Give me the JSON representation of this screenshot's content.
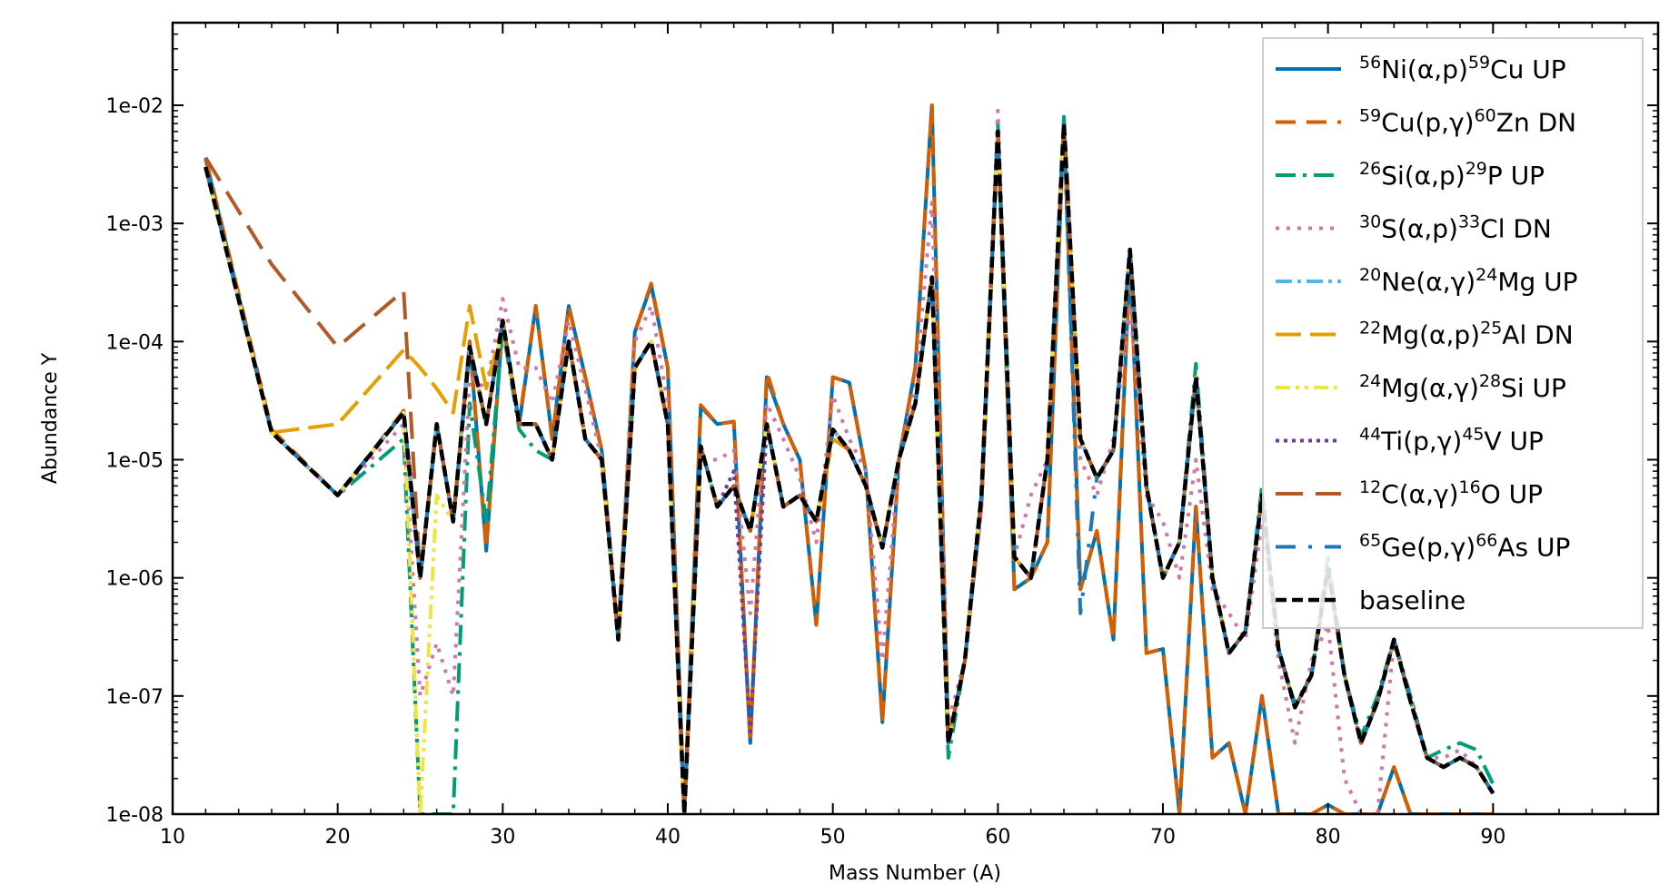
{
  "chart_data": {
    "type": "line",
    "title": "",
    "xlabel": "Mass Number (A)",
    "ylabel": "Abundance Y",
    "xlim": [
      10,
      100
    ],
    "ylim": [
      1e-08,
      0.05
    ],
    "yscale": "log",
    "x_ticks": [
      10,
      20,
      30,
      40,
      50,
      60,
      70,
      80,
      90
    ],
    "y_ticks": [
      {
        "value": 1e-08,
        "label": "1e-08"
      },
      {
        "value": 1e-07,
        "label": "1e-07"
      },
      {
        "value": 1e-06,
        "label": "1e-06"
      },
      {
        "value": 1e-05,
        "label": "1e-05"
      },
      {
        "value": 0.0001,
        "label": "1e-04"
      },
      {
        "value": 0.001,
        "label": "1e-03"
      },
      {
        "value": 0.01,
        "label": "1e-02"
      }
    ],
    "grid": false,
    "legend_position": "top-right",
    "x": [
      12,
      16,
      20,
      24,
      25,
      26,
      27,
      28,
      29,
      30,
      31,
      32,
      33,
      34,
      35,
      36,
      37,
      38,
      39,
      40,
      41,
      42,
      43,
      44,
      45,
      46,
      47,
      48,
      49,
      50,
      51,
      52,
      53,
      54,
      55,
      56,
      57,
      58,
      59,
      60,
      61,
      62,
      63,
      64,
      65,
      66,
      67,
      68,
      69,
      70,
      71,
      72,
      73,
      74,
      75,
      76,
      77,
      78,
      79,
      80,
      81,
      82,
      83,
      84,
      85,
      86,
      87,
      88,
      89,
      90
    ],
    "series": [
      {
        "name": "Ni(α,p)Cu UP",
        "legend": {
          "sup1": "56",
          "text1": "Ni(α,p)",
          "sup2": "59",
          "text2": "Cu UP"
        },
        "color": "#0072b2",
        "dash": "",
        "width": 4,
        "values": [
          0.0035,
          1.7e-05,
          5e-06,
          2.5e-05,
          1e-06,
          2e-05,
          3e-06,
          0.0001,
          1.7e-06,
          0.00015,
          2e-05,
          0.0002,
          1.5e-05,
          0.0002,
          5e-05,
          1.2e-05,
          3e-07,
          0.00012,
          0.0003,
          6e-05,
          1e-08,
          2.8e-05,
          2e-05,
          2.1e-05,
          4e-08,
          5e-05,
          2e-05,
          1e-05,
          4e-07,
          5e-05,
          4.5e-05,
          8e-06,
          6e-08,
          1e-05,
          6e-05,
          0.01,
          4e-08,
          2e-07,
          4e-06,
          0.006,
          8e-07,
          1e-06,
          2e-06,
          0.007,
          8e-07,
          2.5e-06,
          3e-07,
          0.0005,
          2.3e-07,
          2.5e-07,
          1e-08,
          4e-06,
          3e-08,
          4e-08,
          1e-08,
          1e-07,
          1e-08,
          1e-08,
          1e-08,
          1.2e-08,
          1e-08,
          1e-08,
          1e-08,
          2.5e-08,
          1e-08,
          1e-08,
          1e-08,
          1e-08,
          1e-08,
          1e-08
        ]
      },
      {
        "name": "Cu(p,γ)Zn DN",
        "legend": {
          "sup1": "59",
          "text1": "Cu(p,γ)",
          "sup2": "60",
          "text2": "Zn DN"
        },
        "color": "#d55e00",
        "dash": "22,12",
        "width": 4,
        "values": [
          0.0036,
          1.8e-05,
          5e-06,
          2.6e-05,
          1e-06,
          2e-05,
          3e-06,
          0.0001,
          1.8e-06,
          0.00015,
          2.1e-05,
          0.0002,
          1.5e-05,
          0.0002,
          5e-05,
          1.2e-05,
          3e-07,
          0.00012,
          0.00031,
          6e-05,
          1e-08,
          2.9e-05,
          2e-05,
          2.1e-05,
          4e-08,
          5.5e-05,
          2e-05,
          1e-05,
          4e-07,
          5e-05,
          4.5e-05,
          8e-06,
          6e-08,
          1e-05,
          6e-05,
          0.01,
          4e-08,
          2e-07,
          4e-06,
          0.0062,
          8e-07,
          1e-06,
          2e-06,
          0.0072,
          8e-07,
          2.5e-06,
          3e-07,
          0.00055,
          2.3e-07,
          2.5e-07,
          1e-08,
          4e-06,
          3e-08,
          4e-08,
          1e-08,
          1e-07,
          1e-08,
          1e-08,
          1e-08,
          1.2e-08,
          1e-08,
          1e-08,
          1e-08,
          2.5e-08,
          1e-08,
          1e-08,
          1e-08,
          1e-08,
          1e-08,
          1e-08
        ]
      },
      {
        "name": "Si(α,p)P UP",
        "legend": {
          "sup1": "26",
          "text1": "Si(α,p)",
          "sup2": "29",
          "text2": "P UP"
        },
        "color": "#009e73",
        "dash": "22,8,4,8",
        "width": 4,
        "values": [
          0.003,
          1.7e-05,
          5e-06,
          1.5e-05,
          1e-08,
          1e-08,
          1e-08,
          3e-05,
          3e-06,
          0.00013,
          1.8e-05,
          1.2e-05,
          1e-05,
          0.0001,
          1.5e-05,
          1e-05,
          3e-07,
          6e-05,
          0.0001,
          2e-05,
          1e-08,
          1.3e-05,
          4e-06,
          6e-06,
          2.5e-06,
          2e-05,
          4e-06,
          5e-06,
          3e-06,
          1.8e-05,
          1.2e-05,
          6e-06,
          1.8e-06,
          1e-05,
          3e-05,
          0.00035,
          3e-08,
          2e-07,
          5e-06,
          0.007,
          1.5e-06,
          1e-06,
          1e-05,
          0.008,
          1.5e-05,
          7e-06,
          1.2e-05,
          0.0006,
          6e-06,
          1e-06,
          2e-06,
          6.5e-05,
          1e-06,
          2.3e-07,
          3.5e-07,
          6e-06,
          2.5e-07,
          8.5e-08,
          1.5e-07,
          1.5e-06,
          1.5e-07,
          4.5e-08,
          1e-07,
          3e-07,
          1e-07,
          3e-08,
          3.5e-08,
          4e-08,
          3.5e-08,
          1.8e-08
        ]
      },
      {
        "name": "S(α,p)Cl DN",
        "legend": {
          "sup1": "30",
          "text1": "S(α,p)",
          "sup2": "33",
          "text2": "Cl DN"
        },
        "color": "#cc79a7",
        "dash": "4,8",
        "width": 4,
        "values": [
          0.003,
          1.7e-05,
          5e-06,
          2e-05,
          1e-07,
          2.8e-07,
          1e-07,
          5e-05,
          4e-05,
          0.00023,
          6e-05,
          6e-05,
          3e-05,
          0.00015,
          4e-05,
          1e-05,
          4e-07,
          0.0001,
          0.0002,
          3e-05,
          1e-08,
          1e-05,
          1e-05,
          1.2e-05,
          5e-07,
          3e-05,
          1.5e-05,
          7e-06,
          2e-06,
          3.5e-05,
          1.5e-05,
          8e-06,
          2e-07,
          1e-05,
          4e-05,
          0.0015,
          6e-08,
          2e-07,
          4e-06,
          0.009,
          1.5e-06,
          5e-06,
          1e-05,
          0.005,
          1e-05,
          5e-06,
          1.5e-05,
          0.0002,
          5e-06,
          3e-06,
          1e-06,
          1e-05,
          8e-07,
          5e-07,
          3e-07,
          3e-06,
          2e-07,
          4e-08,
          2e-07,
          4e-07,
          2e-08,
          1e-08,
          1e-08,
          3e-07,
          1e-07,
          3e-08,
          3e-08,
          3.5e-08,
          2.5e-08,
          1.5e-08
        ]
      },
      {
        "name": "Ne(α,γ)Mg UP",
        "legend": {
          "sup1": "20",
          "text1": "Ne(α,γ)",
          "sup2": "24",
          "text2": "Mg UP"
        },
        "color": "#56b4e9",
        "dash": "18,6,4,6",
        "width": 4,
        "values": [
          0.003,
          1.7e-05,
          5e-06,
          2.5e-05,
          1e-06,
          2e-05,
          3e-06,
          9e-05,
          2e-05,
          0.00015,
          2e-05,
          2e-05,
          1e-05,
          0.0001,
          1.5e-05,
          1e-05,
          3e-07,
          6e-05,
          0.0001,
          2e-05,
          1e-08,
          1.3e-05,
          4e-06,
          6e-06,
          2.5e-06,
          2e-05,
          4e-06,
          5e-06,
          3e-06,
          1.8e-05,
          1.2e-05,
          6e-06,
          1.8e-06,
          1e-05,
          3e-05,
          0.00035,
          4e-08,
          2e-07,
          5e-06,
          0.006,
          1.5e-06,
          1e-06,
          1e-05,
          0.007,
          1.5e-05,
          7e-06,
          1.2e-05,
          0.0005,
          6e-06,
          1e-06,
          2e-06,
          5e-05,
          1e-06,
          2.3e-07,
          3.5e-07,
          5e-06,
          2.5e-07,
          8e-08,
          1.5e-07,
          1.2e-06,
          1.5e-07,
          4e-08,
          9e-08,
          3e-07,
          9e-08,
          3e-08,
          2.5e-08,
          3e-08,
          2.5e-08,
          1.5e-08
        ]
      },
      {
        "name": "Mg(α,p)Al DN",
        "legend": {
          "sup1": "22",
          "text1": "Mg(α,p)",
          "sup2": "25",
          "text2": "Al DN"
        },
        "color": "#e69f00",
        "dash": "28,10",
        "width": 4,
        "values": [
          0.003,
          1.7e-05,
          2e-05,
          8.5e-05,
          6e-05,
          4e-05,
          2.5e-05,
          0.0002,
          4e-05,
          0.00014,
          2e-05,
          2e-05,
          1e-05,
          0.0001,
          1.5e-05,
          1e-05,
          3e-07,
          6e-05,
          0.0001,
          2e-05,
          1e-08,
          1.3e-05,
          4e-06,
          6e-06,
          2.5e-06,
          2e-05,
          4e-06,
          5e-06,
          3e-06,
          1.5e-05,
          1.2e-05,
          6e-06,
          1.8e-06,
          1e-05,
          3e-05,
          0.00035,
          4e-08,
          2e-07,
          5e-06,
          0.006,
          1.5e-06,
          1e-06,
          1e-05,
          0.007,
          1.5e-05,
          7e-06,
          1.2e-05,
          0.0006,
          6e-06,
          1e-06,
          2e-06,
          5e-05,
          1e-06,
          2.3e-07,
          3.5e-07,
          5e-06,
          2.5e-07,
          8e-08,
          1.5e-07,
          1.2e-06,
          1.5e-07,
          4e-08,
          9e-08,
          3e-07,
          9e-08,
          3e-08,
          2.5e-08,
          3e-08,
          2.5e-08,
          1.5e-08
        ]
      },
      {
        "name": "Mg(α,γ)Si UP",
        "legend": {
          "sup1": "24",
          "text1": "Mg(α,γ)",
          "sup2": "28",
          "text2": "Si UP"
        },
        "color": "#f0e442",
        "dash": "16,6,4,6,4,6",
        "width": 4,
        "values": [
          0.003,
          1.7e-05,
          5e-06,
          2.5e-05,
          1e-08,
          5e-06,
          3e-06,
          9e-05,
          2e-05,
          0.00015,
          2e-05,
          2e-05,
          1e-05,
          0.0001,
          1.5e-05,
          1e-05,
          3e-07,
          6e-05,
          0.0001,
          2e-05,
          1e-08,
          1.3e-05,
          4e-06,
          6e-06,
          2.5e-06,
          2e-05,
          4e-06,
          5e-06,
          3e-06,
          1.8e-05,
          1.2e-05,
          6e-06,
          1.8e-06,
          1e-05,
          3e-05,
          0.00035,
          4e-08,
          2e-07,
          5e-06,
          0.006,
          1.5e-06,
          1e-06,
          1e-05,
          0.007,
          1.5e-05,
          7e-06,
          1.2e-05,
          0.0006,
          6e-06,
          1e-06,
          2e-06,
          5e-05,
          1e-06,
          2.3e-07,
          3.5e-07,
          5e-06,
          2.5e-07,
          8e-08,
          1.5e-07,
          1.2e-06,
          1.5e-07,
          4e-08,
          9e-08,
          3e-07,
          9e-08,
          3e-08,
          2.5e-08,
          3e-08,
          2.5e-08,
          1.5e-08
        ]
      },
      {
        "name": "Ti(p,γ)V UP",
        "legend": {
          "sup1": "44",
          "text1": "Ti(p,γ)",
          "sup2": "45",
          "text2": "V UP"
        },
        "color": "#6a3d9a",
        "dash": "4,5",
        "width": 4,
        "values": [
          0.003,
          1.7e-05,
          5e-06,
          2.5e-05,
          1e-06,
          2e-05,
          3e-06,
          9e-05,
          2e-05,
          0.00015,
          2e-05,
          2e-05,
          1e-05,
          0.0001,
          1.5e-05,
          1e-05,
          3e-07,
          6e-05,
          0.0001,
          2e-05,
          1e-08,
          1.3e-05,
          4e-06,
          8e-06,
          5e-08,
          2e-05,
          4e-06,
          5e-06,
          3e-06,
          1.8e-05,
          1.2e-05,
          6e-06,
          1.8e-06,
          1e-05,
          3e-05,
          0.00035,
          4e-08,
          2e-07,
          5e-06,
          0.006,
          1.5e-06,
          1e-06,
          1e-05,
          0.007,
          1.5e-05,
          7e-06,
          1.2e-05,
          0.0006,
          6e-06,
          1e-06,
          2e-06,
          5e-05,
          1e-06,
          2.3e-07,
          3.5e-07,
          5e-06,
          2.5e-07,
          8e-08,
          1.5e-07,
          1.2e-06,
          1.5e-07,
          4e-08,
          9e-08,
          3e-07,
          9e-08,
          3e-08,
          2.5e-08,
          3e-08,
          2.5e-08,
          1.5e-08
        ]
      },
      {
        "name": "C(α,γ)O UP",
        "legend": {
          "sup1": "12",
          "text1": "C(α,γ)",
          "sup2": "16",
          "text2": "O UP"
        },
        "color": "#b15928",
        "dash": "30,14",
        "width": 4,
        "values": [
          0.0036,
          0.00045,
          9e-05,
          0.00027,
          1e-06,
          2e-05,
          3e-06,
          9e-05,
          2e-05,
          0.00015,
          2e-05,
          2e-05,
          1e-05,
          0.0001,
          1.5e-05,
          1e-05,
          3e-07,
          6e-05,
          0.0001,
          2e-05,
          1e-08,
          1.3e-05,
          4e-06,
          6e-06,
          2.5e-06,
          2e-05,
          4e-06,
          5e-06,
          3e-06,
          1.8e-05,
          1.2e-05,
          6e-06,
          1.8e-06,
          1e-05,
          3e-05,
          0.00035,
          4e-08,
          2e-07,
          5e-06,
          0.006,
          1.5e-06,
          1e-06,
          1e-05,
          0.007,
          1.5e-05,
          7e-06,
          1.2e-05,
          0.0006,
          6e-06,
          1e-06,
          2e-06,
          5e-05,
          1e-06,
          2.3e-07,
          3.5e-07,
          5e-06,
          2.5e-07,
          8e-08,
          1.5e-07,
          1.2e-06,
          1.5e-07,
          4e-08,
          9e-08,
          3e-07,
          9e-08,
          3e-08,
          2.5e-08,
          3e-08,
          2.5e-08,
          1.5e-08
        ]
      },
      {
        "name": "Ge(p,γ)As UP",
        "legend": {
          "sup1": "65",
          "text1": "Ge(p,γ)",
          "sup2": "66",
          "text2": "As UP"
        },
        "color": "#1f78b4",
        "dash": "22,14,4,14",
        "width": 4,
        "values": [
          0.003,
          1.7e-05,
          5e-06,
          2.5e-05,
          1e-06,
          2e-05,
          3e-06,
          9e-05,
          2e-05,
          0.00015,
          2e-05,
          2e-05,
          1e-05,
          0.0001,
          1.5e-05,
          1e-05,
          3e-07,
          6e-05,
          0.0001,
          2e-05,
          1e-08,
          1.3e-05,
          4e-06,
          6e-06,
          2.5e-06,
          2e-05,
          4e-06,
          5e-06,
          3e-06,
          1.8e-05,
          1.2e-05,
          6e-06,
          1.8e-06,
          1e-05,
          3e-05,
          0.00035,
          4e-08,
          2e-07,
          5e-06,
          0.006,
          1.5e-06,
          1e-06,
          1e-05,
          0.007,
          5e-07,
          7e-06,
          1.2e-05,
          0.0006,
          6e-06,
          1e-06,
          2e-06,
          5e-05,
          1e-06,
          2.3e-07,
          3.5e-07,
          5e-06,
          2.5e-07,
          8e-08,
          1.5e-07,
          1.2e-06,
          1.5e-07,
          4e-08,
          9e-08,
          3e-07,
          9e-08,
          3e-08,
          2.5e-08,
          3e-08,
          2.5e-08,
          1.5e-08
        ]
      },
      {
        "name": "baseline",
        "legend": {
          "sup1": "",
          "text1": "baseline",
          "sup2": "",
          "text2": ""
        },
        "color": "#000000",
        "dash": "12,6",
        "width": 4.5,
        "values": [
          0.003,
          1.7e-05,
          5e-06,
          2.5e-05,
          1e-06,
          2e-05,
          3e-06,
          9e-05,
          2e-05,
          0.00015,
          2e-05,
          2e-05,
          1e-05,
          0.0001,
          1.5e-05,
          1e-05,
          3e-07,
          6e-05,
          0.0001,
          2e-05,
          1e-08,
          1.3e-05,
          4e-06,
          6e-06,
          2.5e-06,
          2e-05,
          4e-06,
          5e-06,
          3e-06,
          1.8e-05,
          1.2e-05,
          6e-06,
          1.8e-06,
          1e-05,
          3e-05,
          0.00035,
          4e-08,
          2e-07,
          5e-06,
          0.006,
          1.5e-06,
          1e-06,
          1e-05,
          0.007,
          1.5e-05,
          7e-06,
          1.2e-05,
          0.0006,
          6e-06,
          1e-06,
          2e-06,
          5e-05,
          1e-06,
          2.3e-07,
          3.5e-07,
          5e-06,
          2.5e-07,
          8e-08,
          1.5e-07,
          1.2e-06,
          1.5e-07,
          4e-08,
          9e-08,
          3e-07,
          9e-08,
          3e-08,
          2.5e-08,
          3e-08,
          2.5e-08,
          1.5e-08
        ]
      }
    ]
  }
}
